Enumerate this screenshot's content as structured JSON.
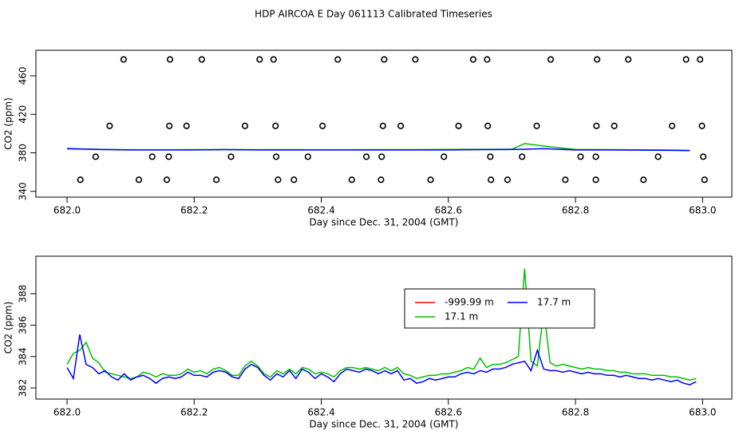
{
  "chart_data": [
    {
      "type": "scatter",
      "title": "HDP AIRCOA E  Day 061113  Calibrated Timeseries",
      "xlabel": "Day since Dec. 31, 2004 (GMT)",
      "ylabel": "CO2 (ppm)",
      "xlim": [
        681.951,
        683.046
      ],
      "ylim": [
        334,
        486.5
      ],
      "xticks": [
        {
          "value": 682,
          "label": "682.0"
        },
        682.2,
        682.4,
        682.6,
        682.8,
        {
          "value": 683,
          "label": "683.0"
        }
      ],
      "yticks": [
        340,
        380,
        420,
        460
      ],
      "points": {
        "color": "#000000",
        "x": [
          682.089,
          682.162,
          682.212,
          682.303,
          682.325,
          682.426,
          682.499,
          682.548,
          682.639,
          682.661,
          682.761,
          682.834,
          682.883,
          682.974,
          682.996,
          682.067,
          682.161,
          682.188,
          682.28,
          682.328,
          682.402,
          682.497,
          682.525,
          682.616,
          682.662,
          682.739,
          682.833,
          682.861,
          682.952,
          682.999,
          682.045,
          682.134,
          682.16,
          682.258,
          682.329,
          682.379,
          682.471,
          682.495,
          682.593,
          682.666,
          682.716,
          682.808,
          682.832,
          682.93,
          683.001,
          682.021,
          682.113,
          682.157,
          682.235,
          682.332,
          682.357,
          682.448,
          682.494,
          682.572,
          682.667,
          682.693,
          682.784,
          682.832,
          682.907,
          683.003
        ],
        "values": [
          477,
          477,
          477,
          477,
          477,
          477,
          477,
          477,
          477,
          477,
          477,
          477,
          477,
          477,
          477,
          408,
          408,
          408,
          408,
          408,
          408,
          408,
          408,
          408,
          408,
          408,
          408,
          408,
          408,
          408,
          376,
          376,
          376,
          376,
          376,
          376,
          376,
          376,
          376,
          376,
          376,
          376,
          376,
          376,
          376,
          352,
          352,
          352,
          352,
          352,
          352,
          352,
          352,
          352,
          352,
          352,
          352,
          352,
          352,
          352
        ]
      },
      "x": [
        682.0,
        682.05,
        682.1,
        682.15,
        682.2,
        682.25,
        682.3,
        682.35,
        682.4,
        682.45,
        682.5,
        682.55,
        682.6,
        682.65,
        682.7,
        682.72,
        682.75,
        682.8,
        682.85,
        682.9,
        682.95,
        682.98
      ],
      "series": [
        {
          "color": "#00c000",
          "values": [
            384,
            383.6,
            383.2,
            383.1,
            383.3,
            383.4,
            383.2,
            383.3,
            383.1,
            383.2,
            383.3,
            383.3,
            383.5,
            383.6,
            383.8,
            389.6,
            387,
            383.5,
            383.3,
            383.1,
            382.9,
            382.6
          ]
        },
        {
          "color": "#0000ff",
          "values": [
            384.5,
            383.5,
            383,
            383,
            383,
            383.3,
            383,
            383,
            383,
            383,
            383,
            383,
            383,
            383.3,
            383.5,
            383.7,
            384.4,
            383,
            383,
            382.8,
            382.6,
            382.3
          ]
        }
      ]
    },
    {
      "type": "line",
      "xlabel": "Day since Dec. 31, 2004 (GMT)",
      "ylabel": "CO2 (ppm)",
      "xlim": [
        681.951,
        683.046
      ],
      "ylim": [
        381.29,
        390.39
      ],
      "xticks": [
        {
          "value": 682,
          "label": "682.0"
        },
        682.2,
        682.4,
        682.6,
        682.8,
        {
          "value": 683,
          "label": "683.0"
        }
      ],
      "yticks": [
        382,
        384,
        386,
        388
      ],
      "legend": "right",
      "x": [
        682.0,
        682.01,
        682.02,
        682.03,
        682.04,
        682.05,
        682.06,
        682.07,
        682.08,
        682.09,
        682.1,
        682.11,
        682.12,
        682.13,
        682.14,
        682.15,
        682.16,
        682.17,
        682.18,
        682.19,
        682.2,
        682.21,
        682.22,
        682.23,
        682.24,
        682.25,
        682.26,
        682.27,
        682.28,
        682.29,
        682.3,
        682.31,
        682.32,
        682.33,
        682.34,
        682.35,
        682.36,
        682.37,
        682.38,
        682.39,
        682.4,
        682.41,
        682.42,
        682.43,
        682.44,
        682.45,
        682.46,
        682.47,
        682.48,
        682.49,
        682.5,
        682.51,
        682.52,
        682.53,
        682.54,
        682.55,
        682.56,
        682.57,
        682.58,
        682.59,
        682.6,
        682.61,
        682.62,
        682.63,
        682.64,
        682.65,
        682.66,
        682.67,
        682.68,
        682.69,
        682.7,
        682.71,
        682.72,
        682.73,
        682.74,
        682.75,
        682.76,
        682.77,
        682.78,
        682.79,
        682.8,
        682.81,
        682.82,
        682.83,
        682.84,
        682.85,
        682.86,
        682.87,
        682.88,
        682.89,
        682.9,
        682.91,
        682.92,
        682.93,
        682.94,
        682.95,
        682.96,
        682.97,
        682.98,
        682.99
      ],
      "series": [
        {
          "name": "-999.99 m",
          "color": "#ff0000",
          "values": [
            null,
            null,
            null,
            null,
            null,
            null,
            null,
            null,
            null,
            null,
            null,
            null,
            null,
            null,
            null,
            null,
            null,
            null,
            null,
            null,
            null,
            null,
            null,
            null,
            null,
            null,
            null,
            null,
            null,
            null,
            null,
            null,
            null,
            null,
            null,
            null,
            null,
            null,
            null,
            null,
            null,
            null,
            null,
            null,
            null,
            null,
            null,
            null,
            null,
            null,
            null,
            null,
            null,
            null,
            null,
            null,
            null,
            null,
            null,
            null,
            null,
            null,
            null,
            null,
            null,
            null,
            null,
            null,
            null,
            null,
            null,
            null,
            null,
            null,
            null,
            null,
            null,
            null,
            null,
            null,
            null,
            null,
            null,
            null,
            null,
            null,
            null,
            null,
            null,
            null,
            null,
            null,
            null,
            null,
            null,
            null,
            null,
            null,
            null,
            null
          ]
        },
        {
          "name": "17.1 m",
          "color": "#00c000",
          "values": [
            383.5,
            384.2,
            384.4,
            384.9,
            383.9,
            383.6,
            383.0,
            382.9,
            382.8,
            382.7,
            382.6,
            382.7,
            383.0,
            382.9,
            382.7,
            382.9,
            382.8,
            382.8,
            382.9,
            383.2,
            383.0,
            383.1,
            382.9,
            383.2,
            383.3,
            383.1,
            382.8,
            382.8,
            383.4,
            383.7,
            383.4,
            382.9,
            382.7,
            383.1,
            382.9,
            383.2,
            382.9,
            383.3,
            383.2,
            382.9,
            383.0,
            382.9,
            382.7,
            383.1,
            383.3,
            383.3,
            383.2,
            383.3,
            383.2,
            383.1,
            383.3,
            383.1,
            383.3,
            382.9,
            382.8,
            382.6,
            382.7,
            382.8,
            382.8,
            382.9,
            382.9,
            383.0,
            383.1,
            383.3,
            383.2,
            383.9,
            383.3,
            383.5,
            383.5,
            383.6,
            383.8,
            384.0,
            389.6,
            383.7,
            383.4,
            387.0,
            383.6,
            383.4,
            383.5,
            383.4,
            383.3,
            383.2,
            383.3,
            383.2,
            383.2,
            383.1,
            383.1,
            383.0,
            383.0,
            382.9,
            382.9,
            382.9,
            382.8,
            382.8,
            382.8,
            382.7,
            382.7,
            382.6,
            382.5,
            382.6
          ]
        },
        {
          "name": "17.7 m",
          "color": "#0000ff",
          "values": [
            383.3,
            382.6,
            385.4,
            383.5,
            383.3,
            382.9,
            383.1,
            382.7,
            382.5,
            382.9,
            382.5,
            382.7,
            382.8,
            382.6,
            382.3,
            382.6,
            382.7,
            382.6,
            382.7,
            383.0,
            382.8,
            382.8,
            382.7,
            383.0,
            383.1,
            383.0,
            382.7,
            382.6,
            383.2,
            383.5,
            383.3,
            382.8,
            382.5,
            382.9,
            382.7,
            383.1,
            382.6,
            383.2,
            383.0,
            382.6,
            382.9,
            382.7,
            382.4,
            382.9,
            383.2,
            383.1,
            383.0,
            383.2,
            383.1,
            382.9,
            383.1,
            382.9,
            383.1,
            382.5,
            382.6,
            382.3,
            382.4,
            382.6,
            382.5,
            382.6,
            382.7,
            382.7,
            382.9,
            383.0,
            382.9,
            383.1,
            383.0,
            383.2,
            383.2,
            383.3,
            383.5,
            383.6,
            383.7,
            383.1,
            384.4,
            383.2,
            383.1,
            383.1,
            383.0,
            383.1,
            383.0,
            382.9,
            383.0,
            382.9,
            382.9,
            382.8,
            382.8,
            382.7,
            382.8,
            382.7,
            382.6,
            382.6,
            382.5,
            382.6,
            382.5,
            382.4,
            382.5,
            382.3,
            382.2,
            382.4
          ]
        }
      ]
    }
  ]
}
